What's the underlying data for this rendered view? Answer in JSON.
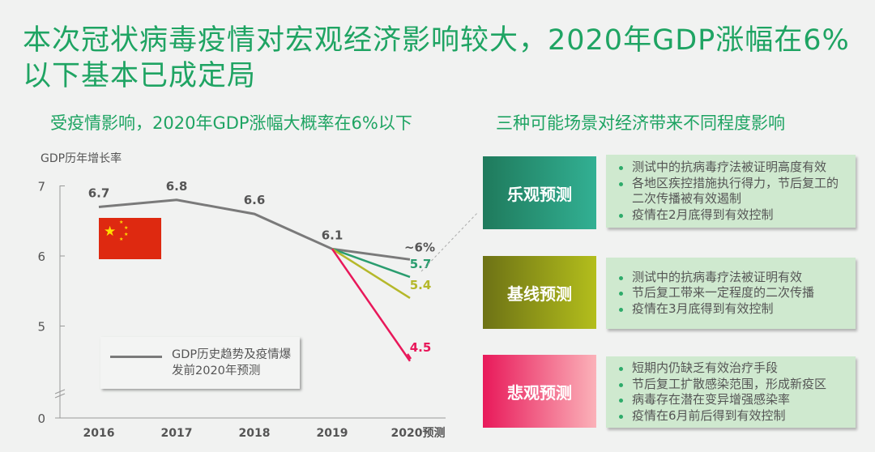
{
  "title": "本次冠状病毒疫情对宏观经济影响较大，2020年GDP涨幅在6%以下基本已成定局",
  "left_subtitle": "受疫情影响，2020年GDP涨幅大概率在6%以下",
  "right_subtitle": "三种可能场景对经济带来不同程度影响",
  "colors": {
    "accent": "#1fa463",
    "history": "#7a7a7a",
    "optimistic": "#2a9d6f",
    "baseline": "#b5b82a",
    "pessimistic": "#e8185a"
  },
  "flag_icon": "china-flag-icon",
  "chart_data": {
    "type": "line",
    "ylabel": "GDP历年增长率",
    "categories": [
      "2016",
      "2017",
      "2018",
      "2019",
      "2020预测"
    ],
    "yticks": [
      "7",
      "6",
      "5",
      "0"
    ],
    "ylim": [
      0,
      7
    ],
    "axis_break": "between 0 and 5",
    "grid": false,
    "legend": {
      "label": "GDP历史趋势及疫情爆发前2020年预测",
      "placement": "bottom-left"
    },
    "series": [
      {
        "name": "GDP历史趋势及疫情爆发前2020年预测",
        "key": "history",
        "values": [
          6.7,
          6.8,
          6.6,
          6.1,
          5.95
        ],
        "labels": [
          "6.7",
          "6.8",
          "6.6",
          "6.1",
          "~6%"
        ]
      },
      {
        "key": "optimistic",
        "values": [
          null,
          null,
          null,
          6.1,
          5.7
        ],
        "labels": [
          null,
          null,
          null,
          null,
          "5.7"
        ]
      },
      {
        "key": "baseline",
        "values": [
          null,
          null,
          null,
          6.1,
          5.4
        ],
        "labels": [
          null,
          null,
          null,
          null,
          "5.4"
        ]
      },
      {
        "key": "pessimistic",
        "values": [
          null,
          null,
          null,
          6.1,
          4.5
        ],
        "labels": [
          null,
          null,
          null,
          null,
          "4.5"
        ]
      }
    ]
  },
  "scenarios": [
    {
      "label": "乐观预测",
      "points": [
        "测试中的抗病毒疗法被证明高度有效",
        "各地区疾控措施执行得力，节后复工的二次传播被有效遏制",
        "疫情在2月底得到有效控制"
      ]
    },
    {
      "label": "基线预测",
      "points": [
        "测试中的抗病毒疗法被证明有效",
        "节后复工带来一定程度的二次传播",
        "疫情在3月底得到有效控制"
      ]
    },
    {
      "label": "悲观预测",
      "points": [
        "短期内仍缺乏有效治疗手段",
        "节后复工扩散感染范围，形成新疫区",
        "病毒存在潜在变异增强感染率",
        "疫情在6月前后得到有效控制"
      ]
    }
  ]
}
